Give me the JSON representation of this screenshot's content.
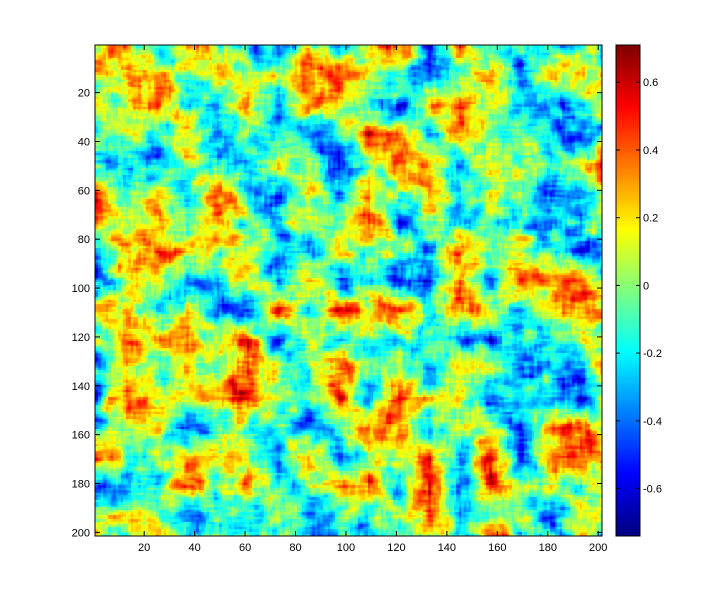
{
  "chart_data": {
    "type": "heatmap",
    "title": "",
    "xlabel": "",
    "ylabel": "",
    "colormap": "jet",
    "rows": 201,
    "cols": 201,
    "xlim": [
      1,
      201
    ],
    "ylim": [
      1,
      201
    ],
    "y_direction": "reversed",
    "value_range": [
      -0.74,
      0.71
    ],
    "grid": false,
    "x_ticks": [
      20,
      40,
      60,
      80,
      100,
      120,
      140,
      160,
      180,
      200
    ],
    "x_tick_labels": [
      "20",
      "40",
      "60",
      "80",
      "100",
      "120",
      "140",
      "160",
      "180",
      "200"
    ],
    "y_ticks": [
      20,
      40,
      60,
      80,
      100,
      120,
      140,
      160,
      180,
      200
    ],
    "y_tick_labels": [
      "20",
      "40",
      "60",
      "80",
      "100",
      "120",
      "140",
      "160",
      "180",
      "200"
    ],
    "colorbar": {
      "placement": "right",
      "ticks": [
        0.6,
        0.4,
        0.2,
        0,
        -0.2,
        -0.4,
        -0.6
      ],
      "tick_labels": [
        "0.6",
        "0.4",
        "0.2",
        "0",
        "-0.2",
        "-0.4",
        "-0.6"
      ]
    }
  }
}
